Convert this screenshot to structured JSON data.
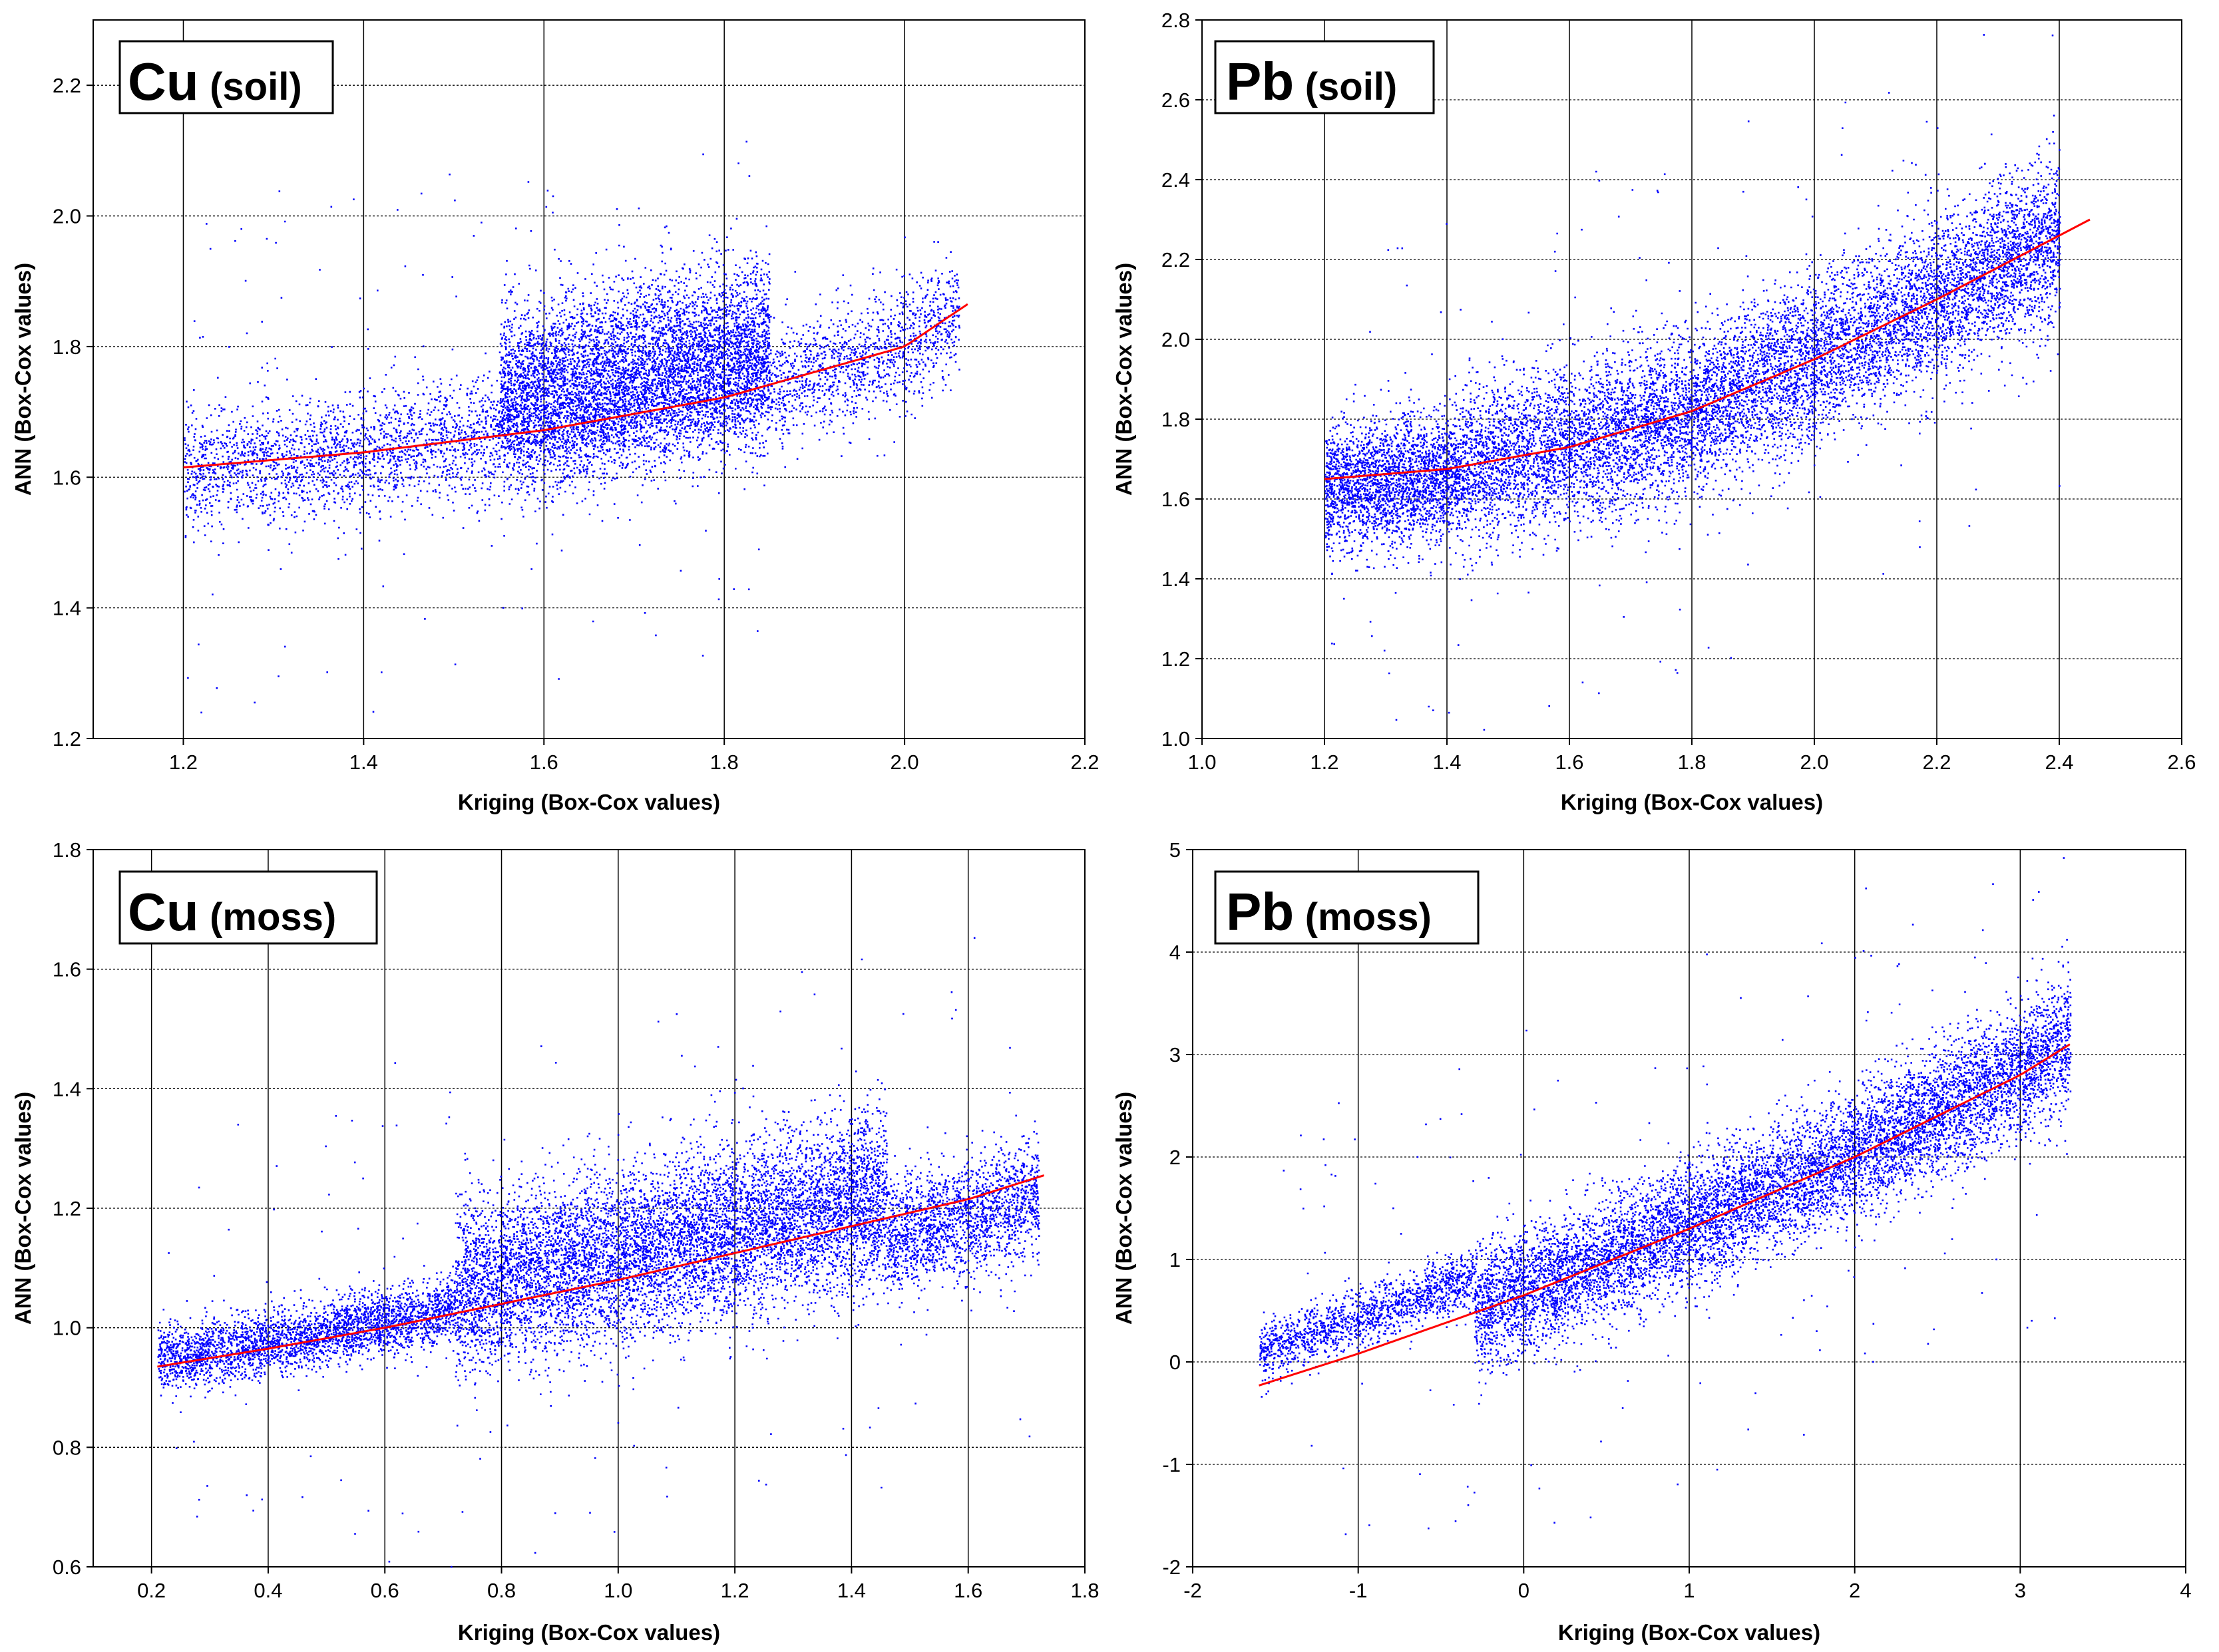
{
  "chart_data": [
    {
      "id": "cu-soil",
      "type": "scatter",
      "title_element": "Cu",
      "title_medium": "(soil)",
      "xlabel": "Kriging (Box-Cox values)",
      "ylabel": "ANN  (Box-Cox values)",
      "xlim": [
        1.1,
        2.2
      ],
      "ylim": [
        1.2,
        2.3
      ],
      "xticks": [
        1.2,
        1.4,
        1.6,
        1.8,
        2.0,
        2.2
      ],
      "yticks": [
        1.2,
        1.4,
        1.6,
        1.8,
        2.0,
        2.2
      ],
      "xtick_labels": [
        "1.2",
        "1.4",
        "1.6",
        "1.8",
        "2.0",
        "2.2"
      ],
      "ytick_labels": [
        "1.2",
        "1.4",
        "1.6",
        "1.8",
        "2.0",
        "2.2"
      ],
      "grid": true,
      "point_color": "#0000ff",
      "fit_color": "#ff0000",
      "seed": 11,
      "clusters": [
        {
          "n": 5200,
          "x0": 1.2,
          "x1": 2.06,
          "sd_a": 0.06,
          "sd_b": 0.11,
          "offset": 0.0
        },
        {
          "n": 5200,
          "x0": 1.55,
          "x1": 1.85,
          "sd_a": 0.12,
          "sd_b": 0.12,
          "offset": 0.07
        }
      ],
      "outliers": 140,
      "fit": {
        "x": [
          1.2,
          1.4,
          1.6,
          1.8,
          2.0,
          2.07
        ],
        "y": [
          1.615,
          1.638,
          1.672,
          1.722,
          1.8,
          1.865
        ]
      }
    },
    {
      "id": "pb-soil",
      "type": "scatter",
      "title_element": "Pb",
      "title_medium": "(soil)",
      "xlabel": "Kriging (Box-Cox values)",
      "ylabel": "ANN  (Box-Cox values)",
      "xlim": [
        1.0,
        2.6
      ],
      "ylim": [
        1.0,
        2.8
      ],
      "xticks": [
        1.0,
        1.2,
        1.4,
        1.6,
        1.8,
        2.0,
        2.2,
        2.4,
        2.6
      ],
      "yticks": [
        1.0,
        1.2,
        1.4,
        1.6,
        1.8,
        2.0,
        2.2,
        2.4,
        2.6,
        2.8
      ],
      "xtick_labels": [
        "1.0",
        "1.2",
        "1.4",
        "1.6",
        "1.8",
        "2.0",
        "2.2",
        "2.4",
        "2.6"
      ],
      "ytick_labels": [
        "1.0",
        "1.2",
        "1.4",
        "1.6",
        "1.8",
        "2.0",
        "2.2",
        "2.4",
        "2.6",
        "2.8"
      ],
      "grid": true,
      "point_color": "#0000ff",
      "fit_color": "#ff0000",
      "seed": 23,
      "clusters": [
        {
          "n": 2500,
          "x0": 1.2,
          "x1": 1.42,
          "sd_a": 0.14,
          "sd_b": 0.14,
          "offset": -0.02
        },
        {
          "n": 9500,
          "x0": 1.42,
          "x1": 2.4,
          "sd_a": 0.18,
          "sd_b": 0.18,
          "offset": 0.0
        }
      ],
      "outliers": 160,
      "fit": {
        "x": [
          1.2,
          1.4,
          1.6,
          1.8,
          2.0,
          2.2,
          2.45
        ],
        "y": [
          1.65,
          1.675,
          1.73,
          1.82,
          1.95,
          2.1,
          2.3
        ]
      }
    },
    {
      "id": "cu-moss",
      "type": "scatter",
      "title_element": "Cu",
      "title_medium": "(moss)",
      "xlabel": "Kriging (Box-Cox values)",
      "ylabel": "ANN  (Box-Cox values)",
      "xlim": [
        0.1,
        1.8
      ],
      "ylim": [
        0.6,
        1.8
      ],
      "xticks": [
        0.2,
        0.4,
        0.6,
        0.8,
        1.0,
        1.2,
        1.4,
        1.6,
        1.8
      ],
      "yticks": [
        0.6,
        0.8,
        1.0,
        1.2,
        1.4,
        1.6,
        1.8
      ],
      "xtick_labels": [
        "0.2",
        "0.4",
        "0.6",
        "0.8",
        "1.0",
        "1.2",
        "1.4",
        "1.6",
        "1.8"
      ],
      "ytick_labels": [
        "0.6",
        "0.8",
        "1.0",
        "1.2",
        "1.4",
        "1.6",
        "1.8"
      ],
      "grid": true,
      "point_color": "#0000ff",
      "fit_color": "#ff0000",
      "seed": 37,
      "clusters": [
        {
          "n": 3000,
          "x0": 0.21,
          "x1": 0.72,
          "sd_a": 0.05,
          "sd_b": 0.05,
          "offset": 0.01
        },
        {
          "n": 8000,
          "x0": 0.72,
          "x1": 1.46,
          "sd_a": 0.13,
          "sd_b": 0.13,
          "offset": 0.04
        },
        {
          "n": 1800,
          "x0": 1.46,
          "x1": 1.72,
          "sd_a": 0.09,
          "sd_b": 0.09,
          "offset": -0.03
        }
      ],
      "outliers": 150,
      "fit": {
        "x": [
          0.21,
          0.4,
          0.6,
          0.8,
          1.0,
          1.2,
          1.4,
          1.6,
          1.73
        ],
        "y": [
          0.935,
          0.965,
          1.0,
          1.04,
          1.08,
          1.125,
          1.17,
          1.215,
          1.255
        ]
      }
    },
    {
      "id": "pb-moss",
      "type": "scatter",
      "title_element": "Pb",
      "title_medium": "(moss)",
      "xlabel": "Kriging (Box-Cox values)",
      "ylabel": "ANN  (Box-Cox values)",
      "xlim": [
        -2,
        4
      ],
      "ylim": [
        -2,
        5
      ],
      "xticks": [
        -2,
        -1,
        0,
        1,
        2,
        3,
        4
      ],
      "yticks": [
        -2,
        -1,
        0,
        1,
        2,
        3,
        4,
        5
      ],
      "xtick_labels": [
        "-2",
        "-1",
        "0",
        "1",
        "2",
        "3",
        "4"
      ],
      "ytick_labels": [
        "-2",
        "-1",
        "0",
        "1",
        "2",
        "3",
        "4",
        "5"
      ],
      "grid": true,
      "point_color": "#0000ff",
      "fit_color": "#ff0000",
      "seed": 53,
      "clusters": [
        {
          "n": 1500,
          "x0": -1.6,
          "x1": -0.3,
          "sd_a": 0.25,
          "sd_b": 0.25,
          "offset": 0.35
        },
        {
          "n": 9000,
          "x0": -0.3,
          "x1": 3.3,
          "sd_a": 0.55,
          "sd_b": 0.55,
          "offset": 0.05
        }
      ],
      "outliers": 180,
      "fit": {
        "x": [
          -1.6,
          -1.0,
          0.0,
          1.0,
          2.0,
          3.0,
          3.3
        ],
        "y": [
          -0.23,
          0.08,
          0.65,
          1.3,
          2.0,
          2.8,
          3.1
        ]
      }
    }
  ]
}
